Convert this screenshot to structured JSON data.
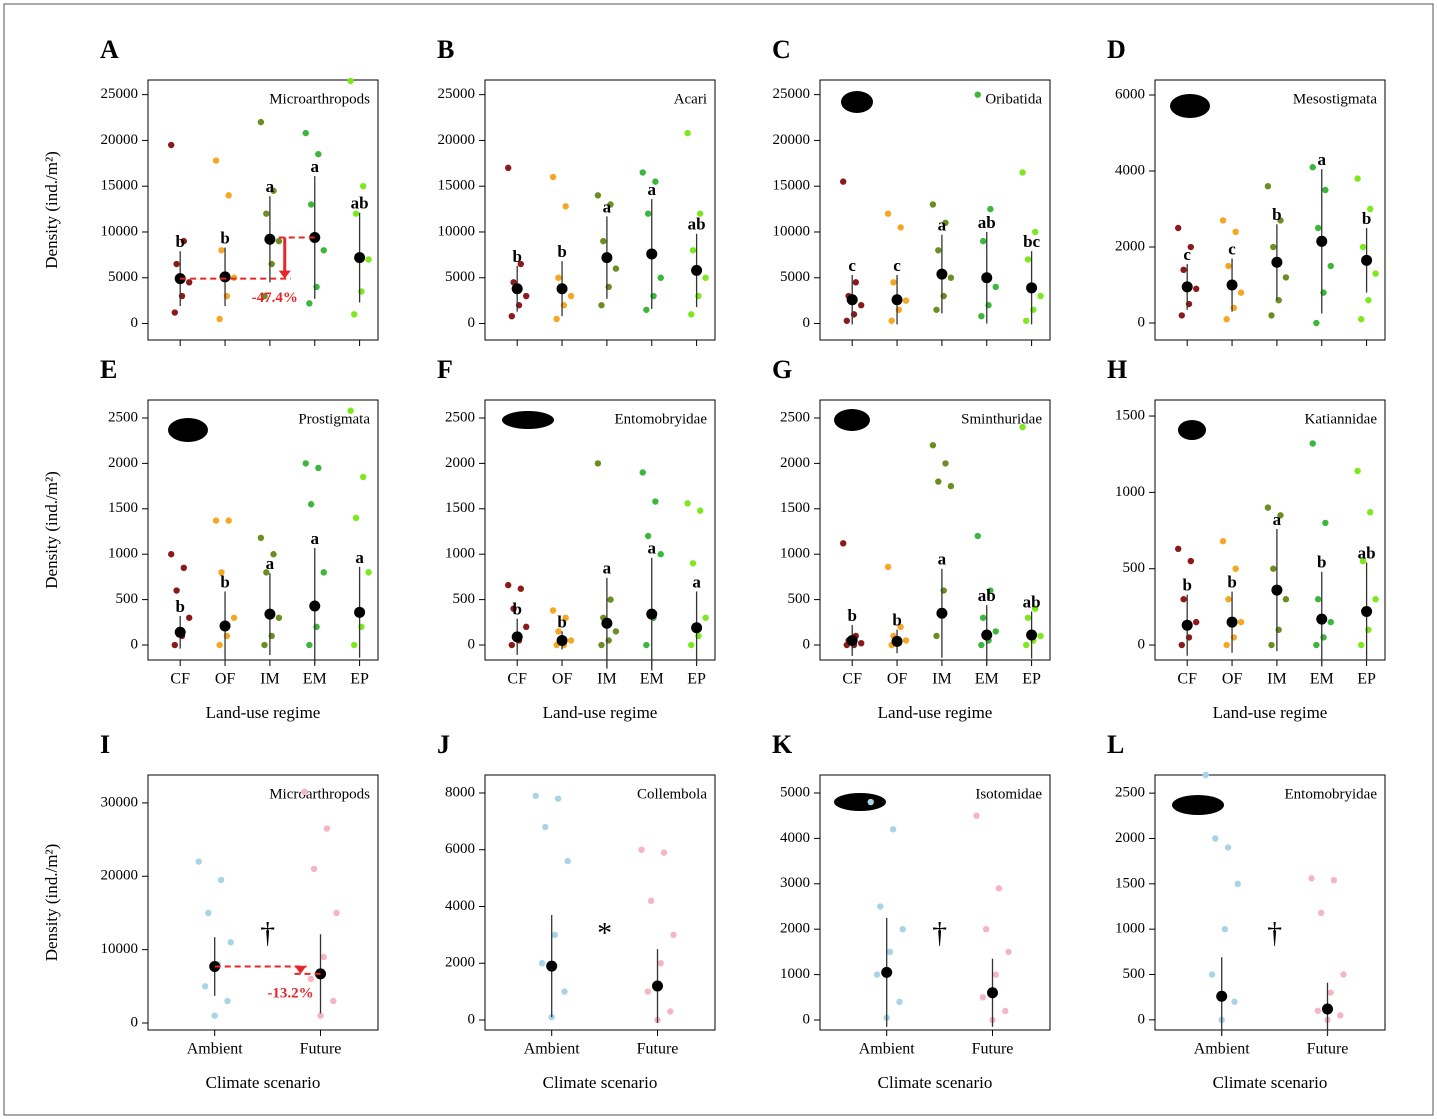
{
  "chart_data": [
    {
      "type": "dot",
      "panel": "A",
      "title": "Microarthropods",
      "ylabel": "Density (ind./m²)",
      "ylim": [
        -1800,
        26600
      ],
      "yticks": [
        0,
        5000,
        10000,
        15000,
        20000,
        25000
      ],
      "colors": [
        "#8b1a1a",
        "#f5a623",
        "#6b8e23",
        "#3cb63c",
        "#7ee81e"
      ],
      "means": [
        4900,
        5100,
        9200,
        9400,
        7200
      ],
      "sd": [
        3000,
        3200,
        4700,
        6700,
        4900
      ],
      "letters": [
        "b",
        "b",
        "a",
        "a",
        "ab"
      ],
      "points": [
        [
          19500,
          9000,
          6500,
          4500,
          3000,
          1200
        ],
        [
          17800,
          14000,
          8000,
          5000,
          3000,
          500
        ],
        [
          22000,
          14500,
          12000,
          9000,
          6500,
          3000
        ],
        [
          20800,
          18500,
          13000,
          8000,
          4000,
          2200
        ],
        [
          26500,
          15000,
          12000,
          7000,
          3500,
          1000
        ]
      ],
      "annotation": "-47.4%"
    },
    {
      "type": "dot",
      "panel": "B",
      "title": "Acari",
      "ylim": [
        -1800,
        26600
      ],
      "yticks": [
        0,
        5000,
        10000,
        15000,
        20000,
        25000
      ],
      "colors": [
        "#8b1a1a",
        "#f5a623",
        "#6b8e23",
        "#3cb63c",
        "#7ee81e"
      ],
      "means": [
        3800,
        3800,
        7200,
        7600,
        5800
      ],
      "sd": [
        2500,
        3000,
        4500,
        6000,
        4000
      ],
      "letters": [
        "b",
        "b",
        "a",
        "a",
        "ab"
      ],
      "points": [
        [
          17000,
          6500,
          4500,
          3000,
          2000,
          800
        ],
        [
          16000,
          12800,
          5000,
          3000,
          2000,
          500
        ],
        [
          14000,
          13000,
          9000,
          6000,
          4000,
          2000
        ],
        [
          16500,
          15500,
          12000,
          5000,
          3000,
          1500
        ],
        [
          20800,
          12000,
          8000,
          5000,
          3000,
          1000
        ]
      ]
    },
    {
      "type": "dot",
      "panel": "C",
      "title": "Oribatida",
      "ylim": [
        -1800,
        26600
      ],
      "yticks": [
        0,
        5000,
        10000,
        15000,
        20000,
        25000
      ],
      "colors": [
        "#8b1a1a",
        "#f5a623",
        "#6b8e23",
        "#3cb63c",
        "#7ee81e"
      ],
      "means": [
        2600,
        2600,
        5400,
        5000,
        3900
      ],
      "sd": [
        2700,
        2700,
        4300,
        5000,
        4000
      ],
      "letters": [
        "c",
        "c",
        "a",
        "ab",
        "bc"
      ],
      "points": [
        [
          15500,
          4500,
          3000,
          2000,
          1000,
          300
        ],
        [
          12000,
          10500,
          4500,
          2500,
          1500,
          300
        ],
        [
          13000,
          11000,
          8000,
          5000,
          3000,
          1500
        ],
        [
          25000,
          12500,
          9000,
          4000,
          2000,
          800
        ],
        [
          16500,
          10000,
          7000,
          3000,
          1500,
          300
        ]
      ]
    },
    {
      "type": "dot",
      "panel": "D",
      "title": "Mesostigmata",
      "ylim": [
        -447,
        6395
      ],
      "yticks": [
        0,
        2000,
        4000,
        6000
      ],
      "colors": [
        "#8b1a1a",
        "#f5a623",
        "#6b8e23",
        "#3cb63c",
        "#7ee81e"
      ],
      "means": [
        950,
        1000,
        1600,
        2150,
        1650
      ],
      "sd": [
        600,
        700,
        1000,
        1900,
        850
      ],
      "letters": [
        "c",
        "c",
        "b",
        "a",
        "b"
      ],
      "points": [
        [
          2500,
          2000,
          1400,
          900,
          500,
          200
        ],
        [
          2700,
          2400,
          1500,
          800,
          400,
          100
        ],
        [
          3600,
          2700,
          2000,
          1200,
          600,
          200
        ],
        [
          4100,
          3500,
          2500,
          1500,
          800,
          0
        ],
        [
          3800,
          3000,
          2000,
          1300,
          600,
          100
        ]
      ]
    },
    {
      "type": "dot",
      "panel": "E",
      "title": "Prostigmata",
      "ylabel": "Density (ind./m²)",
      "xlabel": "Land-use regime",
      "categories": [
        "CF",
        "OF",
        "IM",
        "EM",
        "EP"
      ],
      "ylim": [
        -165,
        2698
      ],
      "yticks": [
        0,
        500,
        1000,
        1500,
        2000,
        2500
      ],
      "colors": [
        "#8b1a1a",
        "#f5a623",
        "#6b8e23",
        "#3cb63c",
        "#7ee81e"
      ],
      "means": [
        140,
        210,
        340,
        430,
        360
      ],
      "sd": [
        180,
        380,
        450,
        640,
        500
      ],
      "letters": [
        "b",
        "b",
        "a",
        "a",
        "a"
      ],
      "points": [
        [
          1000,
          850,
          600,
          300,
          100,
          0
        ],
        [
          1370,
          1370,
          800,
          300,
          100,
          0
        ],
        [
          1180,
          1000,
          800,
          300,
          100,
          0
        ],
        [
          2000,
          1950,
          1550,
          800,
          200,
          0
        ],
        [
          2580,
          1850,
          1400,
          800,
          200,
          0
        ]
      ]
    },
    {
      "type": "dot",
      "panel": "F",
      "title": "Entomobryidae",
      "xlabel": "Land-use regime",
      "categories": [
        "CF",
        "OF",
        "IM",
        "EM",
        "EP"
      ],
      "ylim": [
        -165,
        2698
      ],
      "yticks": [
        0,
        500,
        1000,
        1500,
        2000,
        2500
      ],
      "colors": [
        "#8b1a1a",
        "#f5a623",
        "#6b8e23",
        "#3cb63c",
        "#7ee81e"
      ],
      "means": [
        90,
        50,
        240,
        340,
        190
      ],
      "sd": [
        200,
        100,
        500,
        620,
        400
      ],
      "letters": [
        "b",
        "b",
        "a",
        "a",
        "a"
      ],
      "points": [
        [
          660,
          620,
          400,
          200,
          50,
          0
        ],
        [
          380,
          300,
          150,
          50,
          0,
          0
        ],
        [
          2000,
          500,
          300,
          150,
          50,
          0
        ],
        [
          1900,
          1580,
          1200,
          1000,
          300,
          0
        ],
        [
          1560,
          1480,
          900,
          300,
          100,
          0
        ]
      ]
    },
    {
      "type": "dot",
      "panel": "G",
      "title": "Sminthuridae",
      "xlabel": "Land-use regime",
      "categories": [
        "CF",
        "OF",
        "IM",
        "EM",
        "EP"
      ],
      "ylim": [
        -165,
        2698
      ],
      "yticks": [
        0,
        500,
        1000,
        1500,
        2000,
        2500
      ],
      "colors": [
        "#8b1a1a",
        "#f5a623",
        "#6b8e23",
        "#3cb63c",
        "#7ee81e"
      ],
      "means": [
        50,
        40,
        350,
        110,
        110
      ],
      "sd": [
        170,
        130,
        490,
        330,
        260
      ],
      "letters": [
        "b",
        "b",
        "a",
        "ab",
        "ab"
      ],
      "points": [
        [
          1120,
          100,
          50,
          20,
          0,
          0
        ],
        [
          860,
          200,
          100,
          50,
          20,
          0
        ],
        [
          2200,
          2000,
          1800,
          1750,
          600,
          100
        ],
        [
          1200,
          600,
          300,
          150,
          50,
          0
        ],
        [
          2400,
          400,
          300,
          100,
          50,
          0
        ]
      ]
    },
    {
      "type": "dot",
      "panel": "H",
      "title": "Katiannidae",
      "xlabel": "Land-use regime",
      "categories": [
        "CF",
        "OF",
        "IM",
        "EM",
        "EP"
      ],
      "ylim": [
        -98,
        1605
      ],
      "yticks": [
        0,
        500,
        1000,
        1500
      ],
      "colors": [
        "#8b1a1a",
        "#f5a623",
        "#6b8e23",
        "#3cb63c",
        "#7ee81e"
      ],
      "means": [
        130,
        150,
        360,
        170,
        220
      ],
      "sd": [
        200,
        200,
        400,
        310,
        320
      ],
      "letters": [
        "b",
        "b",
        "a",
        "b",
        "ab"
      ],
      "points": [
        [
          630,
          550,
          300,
          150,
          50,
          0
        ],
        [
          680,
          500,
          300,
          150,
          50,
          0
        ],
        [
          900,
          850,
          500,
          300,
          100,
          0
        ],
        [
          1320,
          800,
          300,
          150,
          50,
          0
        ],
        [
          1140,
          870,
          550,
          300,
          100,
          0
        ]
      ]
    },
    {
      "type": "dot",
      "panel": "I",
      "title": "Microarthropods",
      "ylabel": "Density (ind./m²)",
      "xlabel": "Climate scenario",
      "categories": [
        "Ambient",
        "Future"
      ],
      "ylim": [
        -955,
        33800
      ],
      "yticks": [
        0,
        10000,
        20000,
        30000
      ],
      "colors": [
        "#a8d4e6",
        "#f4b6c2"
      ],
      "means": [
        7700,
        6700
      ],
      "sd": [
        4000,
        5400
      ],
      "symbol": "†",
      "points": [
        [
          22000,
          19500,
          15000,
          11000,
          8000,
          5000,
          3000,
          1000
        ],
        [
          31500,
          26500,
          21000,
          15000,
          9000,
          6000,
          3000,
          1000
        ]
      ],
      "annotation": "-13.2%"
    },
    {
      "type": "dot",
      "panel": "J",
      "title": "Collembola",
      "xlabel": "Climate scenario",
      "categories": [
        "Ambient",
        "Future"
      ],
      "ylim": [
        -352,
        8634
      ],
      "yticks": [
        0,
        2000,
        4000,
        6000,
        8000
      ],
      "colors": [
        "#a8d4e6",
        "#f4b6c2"
      ],
      "means": [
        1900,
        1200
      ],
      "sd": [
        1800,
        1300
      ],
      "symbol": "*",
      "points": [
        [
          7900,
          7800,
          6800,
          5600,
          3000,
          2000,
          1000,
          100
        ],
        [
          6000,
          5900,
          4200,
          3000,
          2000,
          1000,
          300,
          0
        ]
      ]
    },
    {
      "type": "dot",
      "panel": "K",
      "title": "Isotomidae",
      "xlabel": "Climate scenario",
      "categories": [
        "Ambient",
        "Future"
      ],
      "ylim": [
        -220,
        5396
      ],
      "yticks": [
        0,
        1000,
        2000,
        3000,
        4000,
        5000
      ],
      "colors": [
        "#a8d4e6",
        "#f4b6c2"
      ],
      "means": [
        1050,
        600
      ],
      "sd": [
        1200,
        750
      ],
      "symbol": "†",
      "points": [
        [
          4800,
          4200,
          2500,
          2000,
          1500,
          1000,
          400,
          50
        ],
        [
          4500,
          2900,
          2000,
          1500,
          1000,
          500,
          200,
          0
        ]
      ]
    },
    {
      "type": "dot",
      "panel": "L",
      "title": "Entomobryidae",
      "xlabel": "Climate scenario",
      "categories": [
        "Ambient",
        "Future"
      ],
      "ylim": [
        -112,
        2700
      ],
      "yticks": [
        0,
        500,
        1000,
        1500,
        2000,
        2500
      ],
      "colors": [
        "#a8d4e6",
        "#f4b6c2"
      ],
      "means": [
        260,
        120
      ],
      "sd": [
        430,
        290
      ],
      "symbol": "†",
      "points": [
        [
          2700,
          1900,
          2000,
          1500,
          1000,
          500,
          200,
          0
        ],
        [
          1560,
          1540,
          1180,
          500,
          300,
          100,
          50,
          0
        ]
      ]
    }
  ]
}
